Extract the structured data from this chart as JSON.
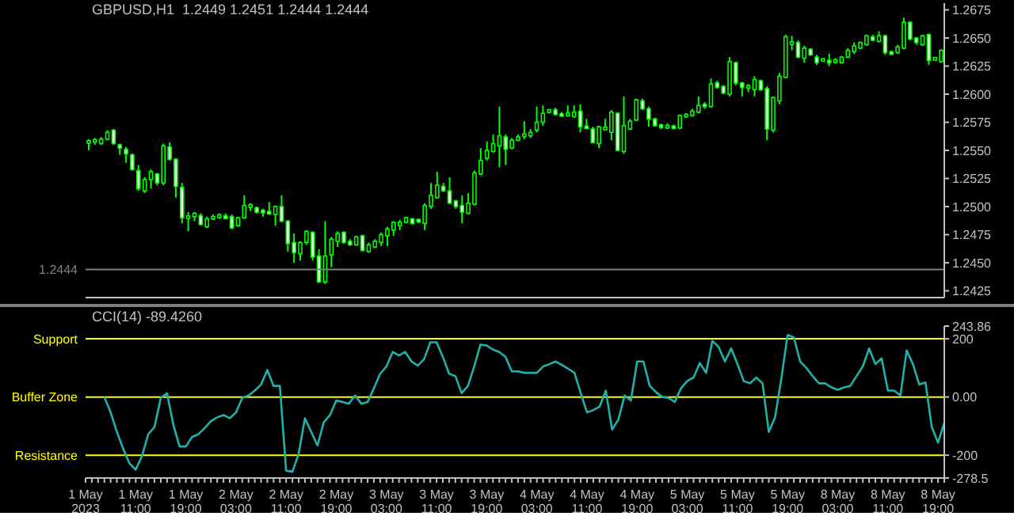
{
  "chart_data": [
    {
      "type": "candlestick",
      "title": "GBPUSD,H1  1.2449 1.2451 1.2444 1.2444",
      "color": "#00ff00",
      "tick_labels": "y",
      "categories": [
        null,
        null,
        null,
        null,
        null,
        null,
        null,
        null,
        null,
        null,
        null,
        null,
        null,
        null,
        null,
        null,
        null,
        null,
        null,
        null,
        null,
        null,
        null,
        null,
        null,
        null,
        null,
        null,
        null,
        null,
        null,
        null,
        null,
        null,
        null,
        null,
        null,
        null,
        null,
        null,
        null,
        null,
        null,
        null,
        null,
        null,
        null,
        null,
        null,
        null,
        null,
        null,
        null,
        null,
        null,
        null,
        null,
        null,
        null,
        null,
        null,
        null,
        null,
        null,
        null,
        null,
        null,
        null,
        null,
        null,
        null,
        null,
        null,
        null,
        null,
        null,
        null,
        null,
        null,
        null,
        null,
        null,
        null,
        null,
        null,
        null,
        null,
        null,
        null,
        null,
        null,
        null,
        null,
        null,
        null,
        null,
        null,
        null,
        null,
        null,
        null,
        null,
        null,
        null,
        null,
        null,
        null,
        null,
        null,
        null,
        null,
        null,
        null,
        null,
        null,
        null,
        null,
        null,
        null,
        null,
        null,
        null,
        null,
        null,
        null,
        null,
        null,
        null,
        null,
        null,
        null,
        null,
        null,
        null,
        null,
        null,
        null,
        null
      ],
      "ohlc": [
        [
          1.2557,
          1.256,
          1.255,
          1.2558
        ],
        [
          1.2558,
          1.2561,
          1.2555,
          1.2559
        ],
        [
          1.2556,
          1.2562,
          1.2555,
          1.256
        ],
        [
          1.256,
          1.2568,
          1.2559,
          1.2566
        ],
        [
          1.2568,
          1.2569,
          1.2555,
          1.2556
        ],
        [
          1.2555,
          1.2556,
          1.2546,
          1.2552
        ],
        [
          1.2551,
          1.2553,
          1.2539,
          1.2547
        ],
        [
          1.2546,
          1.2547,
          1.2532,
          1.2533
        ],
        [
          1.2532,
          1.2537,
          1.2514,
          1.2516
        ],
        [
          1.2514,
          1.2526,
          1.2512,
          1.2524
        ],
        [
          1.2524,
          1.2533,
          1.2516,
          1.2531
        ],
        [
          1.2529,
          1.253,
          1.2519,
          1.2521
        ],
        [
          1.2521,
          1.2556,
          1.2519,
          1.2554
        ],
        [
          1.2553,
          1.2557,
          1.2541,
          1.2542
        ],
        [
          1.2542,
          1.2543,
          1.2508,
          1.2518
        ],
        [
          1.2517,
          1.2521,
          1.2485,
          1.249
        ],
        [
          1.249,
          1.2495,
          1.2478,
          1.2491
        ],
        [
          1.2491,
          1.2495,
          1.2487,
          1.2494
        ],
        [
          1.2492,
          1.2494,
          1.2483,
          1.2484
        ],
        [
          1.2482,
          1.2491,
          1.2481,
          1.2489
        ],
        [
          1.2489,
          1.2493,
          1.2488,
          1.2491
        ],
        [
          1.2491,
          1.2494,
          1.2489,
          1.2492
        ],
        [
          1.2491,
          1.2494,
          1.2489,
          1.249
        ],
        [
          1.2491,
          1.2493,
          1.248,
          1.2481
        ],
        [
          1.2483,
          1.2491,
          1.2482,
          1.249
        ],
        [
          1.249,
          1.251,
          1.2489,
          1.2501
        ],
        [
          1.25,
          1.2503,
          1.2496,
          1.2501
        ],
        [
          1.2499,
          1.25,
          1.2494,
          1.2495
        ],
        [
          1.2496,
          1.2498,
          1.2491,
          1.2495
        ],
        [
          1.2495,
          1.2504,
          1.2493,
          1.2494
        ],
        [
          1.2493,
          1.2501,
          1.2483,
          1.25
        ],
        [
          1.25,
          1.251,
          1.2486,
          1.2487
        ],
        [
          1.2487,
          1.2488,
          1.246,
          1.2467
        ],
        [
          1.2468,
          1.2476,
          1.245,
          1.2459
        ],
        [
          1.2458,
          1.2469,
          1.2452,
          1.2468
        ],
        [
          1.2468,
          1.2479,
          1.2466,
          1.2478
        ],
        [
          1.2477,
          1.2478,
          1.2452,
          1.2455
        ],
        [
          1.2456,
          1.2462,
          1.2432,
          1.2433
        ],
        [
          1.2433,
          1.2487,
          1.2431,
          1.2456
        ],
        [
          1.2457,
          1.2473,
          1.2446,
          1.2471
        ],
        [
          1.2469,
          1.2478,
          1.2464,
          1.2476
        ],
        [
          1.2477,
          1.2478,
          1.2467,
          1.2468
        ],
        [
          1.2469,
          1.2471,
          1.2465,
          1.2466
        ],
        [
          1.2466,
          1.2474,
          1.2465,
          1.2473
        ],
        [
          1.2474,
          1.2475,
          1.246,
          1.2461
        ],
        [
          1.246,
          1.2468,
          1.2459,
          1.2466
        ],
        [
          1.2464,
          1.2471,
          1.2463,
          1.2469
        ],
        [
          1.2468,
          1.2477,
          1.2465,
          1.2475
        ],
        [
          1.2474,
          1.2482,
          1.2465,
          1.248
        ],
        [
          1.2479,
          1.2487,
          1.2474,
          1.2486
        ],
        [
          1.2483,
          1.2488,
          1.2479,
          1.2486
        ],
        [
          1.2486,
          1.2491,
          1.2485,
          1.249
        ],
        [
          1.2489,
          1.249,
          1.2484,
          1.2485
        ],
        [
          1.2488,
          1.2489,
          1.2485,
          1.2487
        ],
        [
          1.2485,
          1.2503,
          1.2479,
          1.2501
        ],
        [
          1.25,
          1.2521,
          1.2498,
          1.251
        ],
        [
          1.2508,
          1.2531,
          1.2507,
          1.2519
        ],
        [
          1.2518,
          1.2521,
          1.2513,
          1.2514
        ],
        [
          1.2514,
          1.2526,
          1.2502,
          1.2503
        ],
        [
          1.2505,
          1.2506,
          1.2498,
          1.25
        ],
        [
          1.2501,
          1.251,
          1.2485,
          1.2495
        ],
        [
          1.2494,
          1.2512,
          1.2493,
          1.2503
        ],
        [
          1.2502,
          1.2532,
          1.2501,
          1.253
        ],
        [
          1.2529,
          1.2552,
          1.2528,
          1.2541
        ],
        [
          1.2543,
          1.2558,
          1.2541,
          1.255
        ],
        [
          1.2549,
          1.2564,
          1.2548,
          1.2556
        ],
        [
          1.2554,
          1.2589,
          1.2535,
          1.2563
        ],
        [
          1.2562,
          1.2564,
          1.2537,
          1.2551
        ],
        [
          1.2552,
          1.2561,
          1.2551,
          1.2559
        ],
        [
          1.2559,
          1.2564,
          1.2558,
          1.2562
        ],
        [
          1.2563,
          1.2576,
          1.256,
          1.2564
        ],
        [
          1.2563,
          1.2569,
          1.2561,
          1.2566
        ],
        [
          1.2568,
          1.2589,
          1.2566,
          1.2575
        ],
        [
          1.2575,
          1.259,
          1.2572,
          1.2583
        ],
        [
          1.2584,
          1.2587,
          1.2583,
          1.2586
        ],
        [
          1.2586,
          1.2588,
          1.2581,
          1.2582
        ],
        [
          1.2582,
          1.2584,
          1.258,
          1.2581
        ],
        [
          1.2581,
          1.259,
          1.258,
          1.2583
        ],
        [
          1.258,
          1.259,
          1.2579,
          1.2584
        ],
        [
          1.2585,
          1.2591,
          1.2566,
          1.2571
        ],
        [
          1.2571,
          1.2578,
          1.2569,
          1.257
        ],
        [
          1.2569,
          1.2571,
          1.2556,
          1.2557
        ],
        [
          1.2556,
          1.2572,
          1.2552,
          1.2571
        ],
        [
          1.2569,
          1.2578,
          1.2568,
          1.257
        ],
        [
          1.2566,
          1.2586,
          1.2559,
          1.2584
        ],
        [
          1.2583,
          1.2584,
          1.2549,
          1.255
        ],
        [
          1.2549,
          1.2598,
          1.2547,
          1.2572
        ],
        [
          1.2569,
          1.2578,
          1.2568,
          1.2576
        ],
        [
          1.2577,
          1.2596,
          1.2576,
          1.2595
        ],
        [
          1.2594,
          1.2596,
          1.2586,
          1.2587
        ],
        [
          1.2587,
          1.2589,
          1.2571,
          1.2578
        ],
        [
          1.2578,
          1.2579,
          1.2571,
          1.2572
        ],
        [
          1.2572,
          1.2574,
          1.2569,
          1.2571
        ],
        [
          1.2571,
          1.2574,
          1.2569,
          1.2571
        ],
        [
          1.2571,
          1.2573,
          1.2569,
          1.257
        ],
        [
          1.257,
          1.2582,
          1.2569,
          1.2581
        ],
        [
          1.258,
          1.2583,
          1.2579,
          1.2582
        ],
        [
          1.2581,
          1.2587,
          1.258,
          1.2585
        ],
        [
          1.2584,
          1.2598,
          1.2583,
          1.259
        ],
        [
          1.2591,
          1.2593,
          1.2587,
          1.2589
        ],
        [
          1.2589,
          1.2614,
          1.2588,
          1.2609
        ],
        [
          1.261,
          1.2612,
          1.2605,
          1.2606
        ],
        [
          1.2607,
          1.2608,
          1.26,
          1.2601
        ],
        [
          1.26,
          1.2633,
          1.2598,
          1.2629
        ],
        [
          1.2628,
          1.2629,
          1.2608,
          1.261
        ],
        [
          1.261,
          1.2611,
          1.2598,
          1.2606
        ],
        [
          1.2606,
          1.2609,
          1.2602,
          1.2607
        ],
        [
          1.2604,
          1.2616,
          1.2598,
          1.2613
        ],
        [
          1.2612,
          1.2613,
          1.2603,
          1.2604
        ],
        [
          1.2605,
          1.2607,
          1.2559,
          1.2569
        ],
        [
          1.2568,
          1.2598,
          1.2566,
          1.2597
        ],
        [
          1.2594,
          1.2619,
          1.2591,
          1.2616
        ],
        [
          1.2615,
          1.2653,
          1.2614,
          1.2651
        ],
        [
          1.2645,
          1.2652,
          1.2639,
          1.2646
        ],
        [
          1.2646,
          1.2648,
          1.2632,
          1.2633
        ],
        [
          1.2632,
          1.2643,
          1.2628,
          1.2641
        ],
        [
          1.264,
          1.2641,
          1.2634,
          1.2635
        ],
        [
          1.2633,
          1.2635,
          1.2626,
          1.2628
        ],
        [
          1.263,
          1.2632,
          1.2629,
          1.2631
        ],
        [
          1.263,
          1.2636,
          1.2625,
          1.2628
        ],
        [
          1.2629,
          1.2632,
          1.2627,
          1.263
        ],
        [
          1.2628,
          1.2634,
          1.2627,
          1.2633
        ],
        [
          1.2633,
          1.2641,
          1.2632,
          1.2639
        ],
        [
          1.2638,
          1.2646,
          1.2636,
          1.2643
        ],
        [
          1.2641,
          1.2647,
          1.264,
          1.2646
        ],
        [
          1.2644,
          1.2653,
          1.2643,
          1.2652
        ],
        [
          1.2651,
          1.2653,
          1.2647,
          1.2648
        ],
        [
          1.2647,
          1.2656,
          1.2646,
          1.2652
        ],
        [
          1.2652,
          1.2653,
          1.2635,
          1.2637
        ],
        [
          1.2637,
          1.2639,
          1.2635,
          1.2636
        ],
        [
          1.2637,
          1.2644,
          1.2636,
          1.2642
        ],
        [
          1.2641,
          1.2668,
          1.264,
          1.2664
        ],
        [
          1.2664,
          1.2665,
          1.2648,
          1.2649
        ],
        [
          1.265,
          1.2651,
          1.2644,
          1.2646
        ],
        [
          1.2644,
          1.2653,
          1.2643,
          1.2652
        ],
        [
          1.2653,
          1.2654,
          1.2626,
          1.263
        ],
        [
          1.2631,
          1.2633,
          1.263,
          1.2632
        ],
        [
          1.2629,
          1.264,
          1.2628,
          1.2639
        ]
      ],
      "colors": [
        "#000000",
        "#000000",
        "#000000",
        "#000000",
        "#ffffff",
        "#ffffff",
        "#ffffff",
        "#ffffff",
        "#ffffff",
        "#000000",
        "#000000",
        "#ffffff",
        "#000000",
        "#ffffff",
        "#ffffff",
        "#ffffff",
        "#000000",
        "#000000",
        "#ffffff",
        "#000000",
        "#000000",
        "#000000",
        "#ffffff",
        "#ffffff",
        "#000000",
        "#000000",
        "#000000",
        "#ffffff",
        "#ffffff",
        "#ffffff",
        "#000000",
        "#ffffff",
        "#ffffff",
        "#ffffff",
        "#000000",
        "#000000",
        "#ffffff",
        "#ffffff",
        "#000000",
        "#000000",
        "#000000",
        "#ffffff",
        "#ffffff",
        "#000000",
        "#ffffff",
        "#000000",
        "#000000",
        "#000000",
        "#000000",
        "#000000",
        "#000000",
        "#000000",
        "#ffffff",
        "#ffffff",
        "#000000",
        "#000000",
        "#000000",
        "#ffffff",
        "#ffffff",
        "#ffffff",
        "#ffffff",
        "#000000",
        "#000000",
        "#000000",
        "#000000",
        "#000000",
        "#000000",
        "#ffffff",
        "#000000",
        "#000000",
        "#000000",
        "#000000",
        "#000000",
        "#000000",
        "#000000",
        "#ffffff",
        "#ffffff",
        "#000000",
        "#000000",
        "#ffffff",
        "#ffffff",
        "#ffffff",
        "#000000",
        "#000000",
        "#000000",
        "#ffffff",
        "#000000",
        "#000000",
        "#000000",
        "#ffffff",
        "#ffffff",
        "#ffffff",
        "#ffffff",
        "#000000",
        "#ffffff",
        "#000000",
        "#000000",
        "#000000",
        "#000000",
        "#ffffff",
        "#000000",
        "#ffffff",
        "#ffffff",
        "#000000",
        "#ffffff",
        "#ffffff",
        "#000000",
        "#000000",
        "#ffffff",
        "#ffffff",
        "#000000",
        "#000000",
        "#000000",
        "#000000",
        "#ffffff",
        "#000000",
        "#ffffff",
        "#ffffff",
        "#000000",
        "#ffffff",
        "#000000",
        "#000000",
        "#000000",
        "#000000",
        "#000000",
        "#000000",
        "#ffffff",
        "#000000",
        "#ffffff",
        "#ffffff",
        "#000000",
        "#000000",
        "#ffffff",
        "#ffffff",
        "#000000",
        "#ffffff",
        "#000000",
        "#000000"
      ],
      "ylim": [
        1.2419,
        1.2681
      ],
      "yticks": [
        1.2425,
        {
          "value": 1.245,
          "label": "1.2450"
        },
        1.2475,
        {
          "value": 1.25,
          "label": "1.2500"
        },
        1.2525,
        {
          "value": 1.255,
          "label": "1.2550"
        },
        1.2575,
        {
          "value": 1.26,
          "label": "1.2600"
        },
        1.2625,
        {
          "value": 1.265,
          "label": "1.2650"
        },
        1.2675
      ],
      "ref_lines": [
        {
          "axis": "y",
          "value": 1.2444,
          "label": "1.2444",
          "color": "#808080"
        }
      ]
    },
    {
      "type": "line",
      "title": "CCI(14) -89.4260",
      "categories": [
        "1 May 2023",
        null,
        null,
        null,
        null,
        null,
        null,
        null,
        "1 May 11:00",
        null,
        null,
        null,
        null,
        null,
        null,
        null,
        "1 May 19:00",
        null,
        null,
        null,
        null,
        null,
        null,
        null,
        "2 May 03:00",
        null,
        null,
        null,
        null,
        null,
        null,
        null,
        "2 May 11:00",
        null,
        null,
        null,
        null,
        null,
        null,
        null,
        "2 May 19:00",
        null,
        null,
        null,
        null,
        null,
        null,
        null,
        "3 May 03:00",
        null,
        null,
        null,
        null,
        null,
        null,
        null,
        "3 May 11:00",
        null,
        null,
        null,
        null,
        null,
        null,
        null,
        "3 May 19:00",
        null,
        null,
        null,
        null,
        null,
        null,
        null,
        "4 May 03:00",
        null,
        null,
        null,
        null,
        null,
        null,
        null,
        "4 May 11:00",
        null,
        null,
        null,
        null,
        null,
        null,
        null,
        "4 May 19:00",
        null,
        null,
        null,
        null,
        null,
        null,
        null,
        "5 May 03:00",
        null,
        null,
        null,
        null,
        null,
        null,
        null,
        "5 May 11:00",
        null,
        null,
        null,
        null,
        null,
        null,
        null,
        "5 May 19:00",
        null,
        null,
        null,
        null,
        null,
        null,
        null,
        "8 May 03:00",
        null,
        null,
        null,
        null,
        null,
        null,
        null,
        "8 May 11:00",
        null,
        null,
        null,
        null,
        null,
        null,
        null,
        "8 May 19:00",
        null
      ],
      "series": [
        {
          "color": "#20b2aa",
          "values": [
            null,
            null,
            null,
            0,
            -53,
            -120,
            -178,
            -228,
            -250,
            -203,
            -128,
            -103,
            -3,
            13,
            -95,
            -170,
            -170,
            -137,
            -128,
            -107,
            -83,
            -70,
            -62,
            -73,
            -53,
            -3,
            5,
            22,
            43,
            93,
            38,
            38,
            -253,
            -257,
            -195,
            -73,
            -120,
            -167,
            -87,
            -62,
            -12,
            -17,
            -23,
            5,
            -23,
            -17,
            30,
            80,
            105,
            155,
            143,
            155,
            122,
            108,
            130,
            188,
            188,
            138,
            80,
            72,
            13,
            38,
            105,
            180,
            177,
            163,
            155,
            138,
            88,
            88,
            83,
            83,
            83,
            105,
            113,
            122,
            110,
            97,
            83,
            13,
            -53,
            -45,
            -33,
            22,
            -112,
            -78,
            5,
            -12,
            122,
            122,
            38,
            17,
            0,
            -3,
            -17,
            30,
            55,
            67,
            117,
            83,
            193,
            172,
            122,
            167,
            113,
            55,
            47,
            67,
            47,
            -120,
            -70,
            63,
            213,
            205,
            122,
            100,
            72,
            47,
            47,
            33,
            25,
            33,
            38,
            72,
            105,
            167,
            113,
            133,
            22,
            22,
            5,
            160,
            113,
            43,
            50,
            -103,
            -157,
            -89
          ]
        }
      ],
      "ylim": [
        -278.5,
        243.86
      ],
      "yticks": [
        243.86,
        200,
        {
          "value": 0,
          "label": "0.00"
        },
        -200,
        -278.5
      ],
      "ref_lines": [
        {
          "axis": "y",
          "value": 200,
          "label": "Support",
          "color": "#ffff00"
        },
        {
          "axis": "y",
          "value": 0,
          "label": "Buffer Zone",
          "color": "#ffff00"
        },
        {
          "axis": "y",
          "value": -200,
          "label": "Resistance",
          "color": "#ffff00"
        }
      ]
    }
  ]
}
